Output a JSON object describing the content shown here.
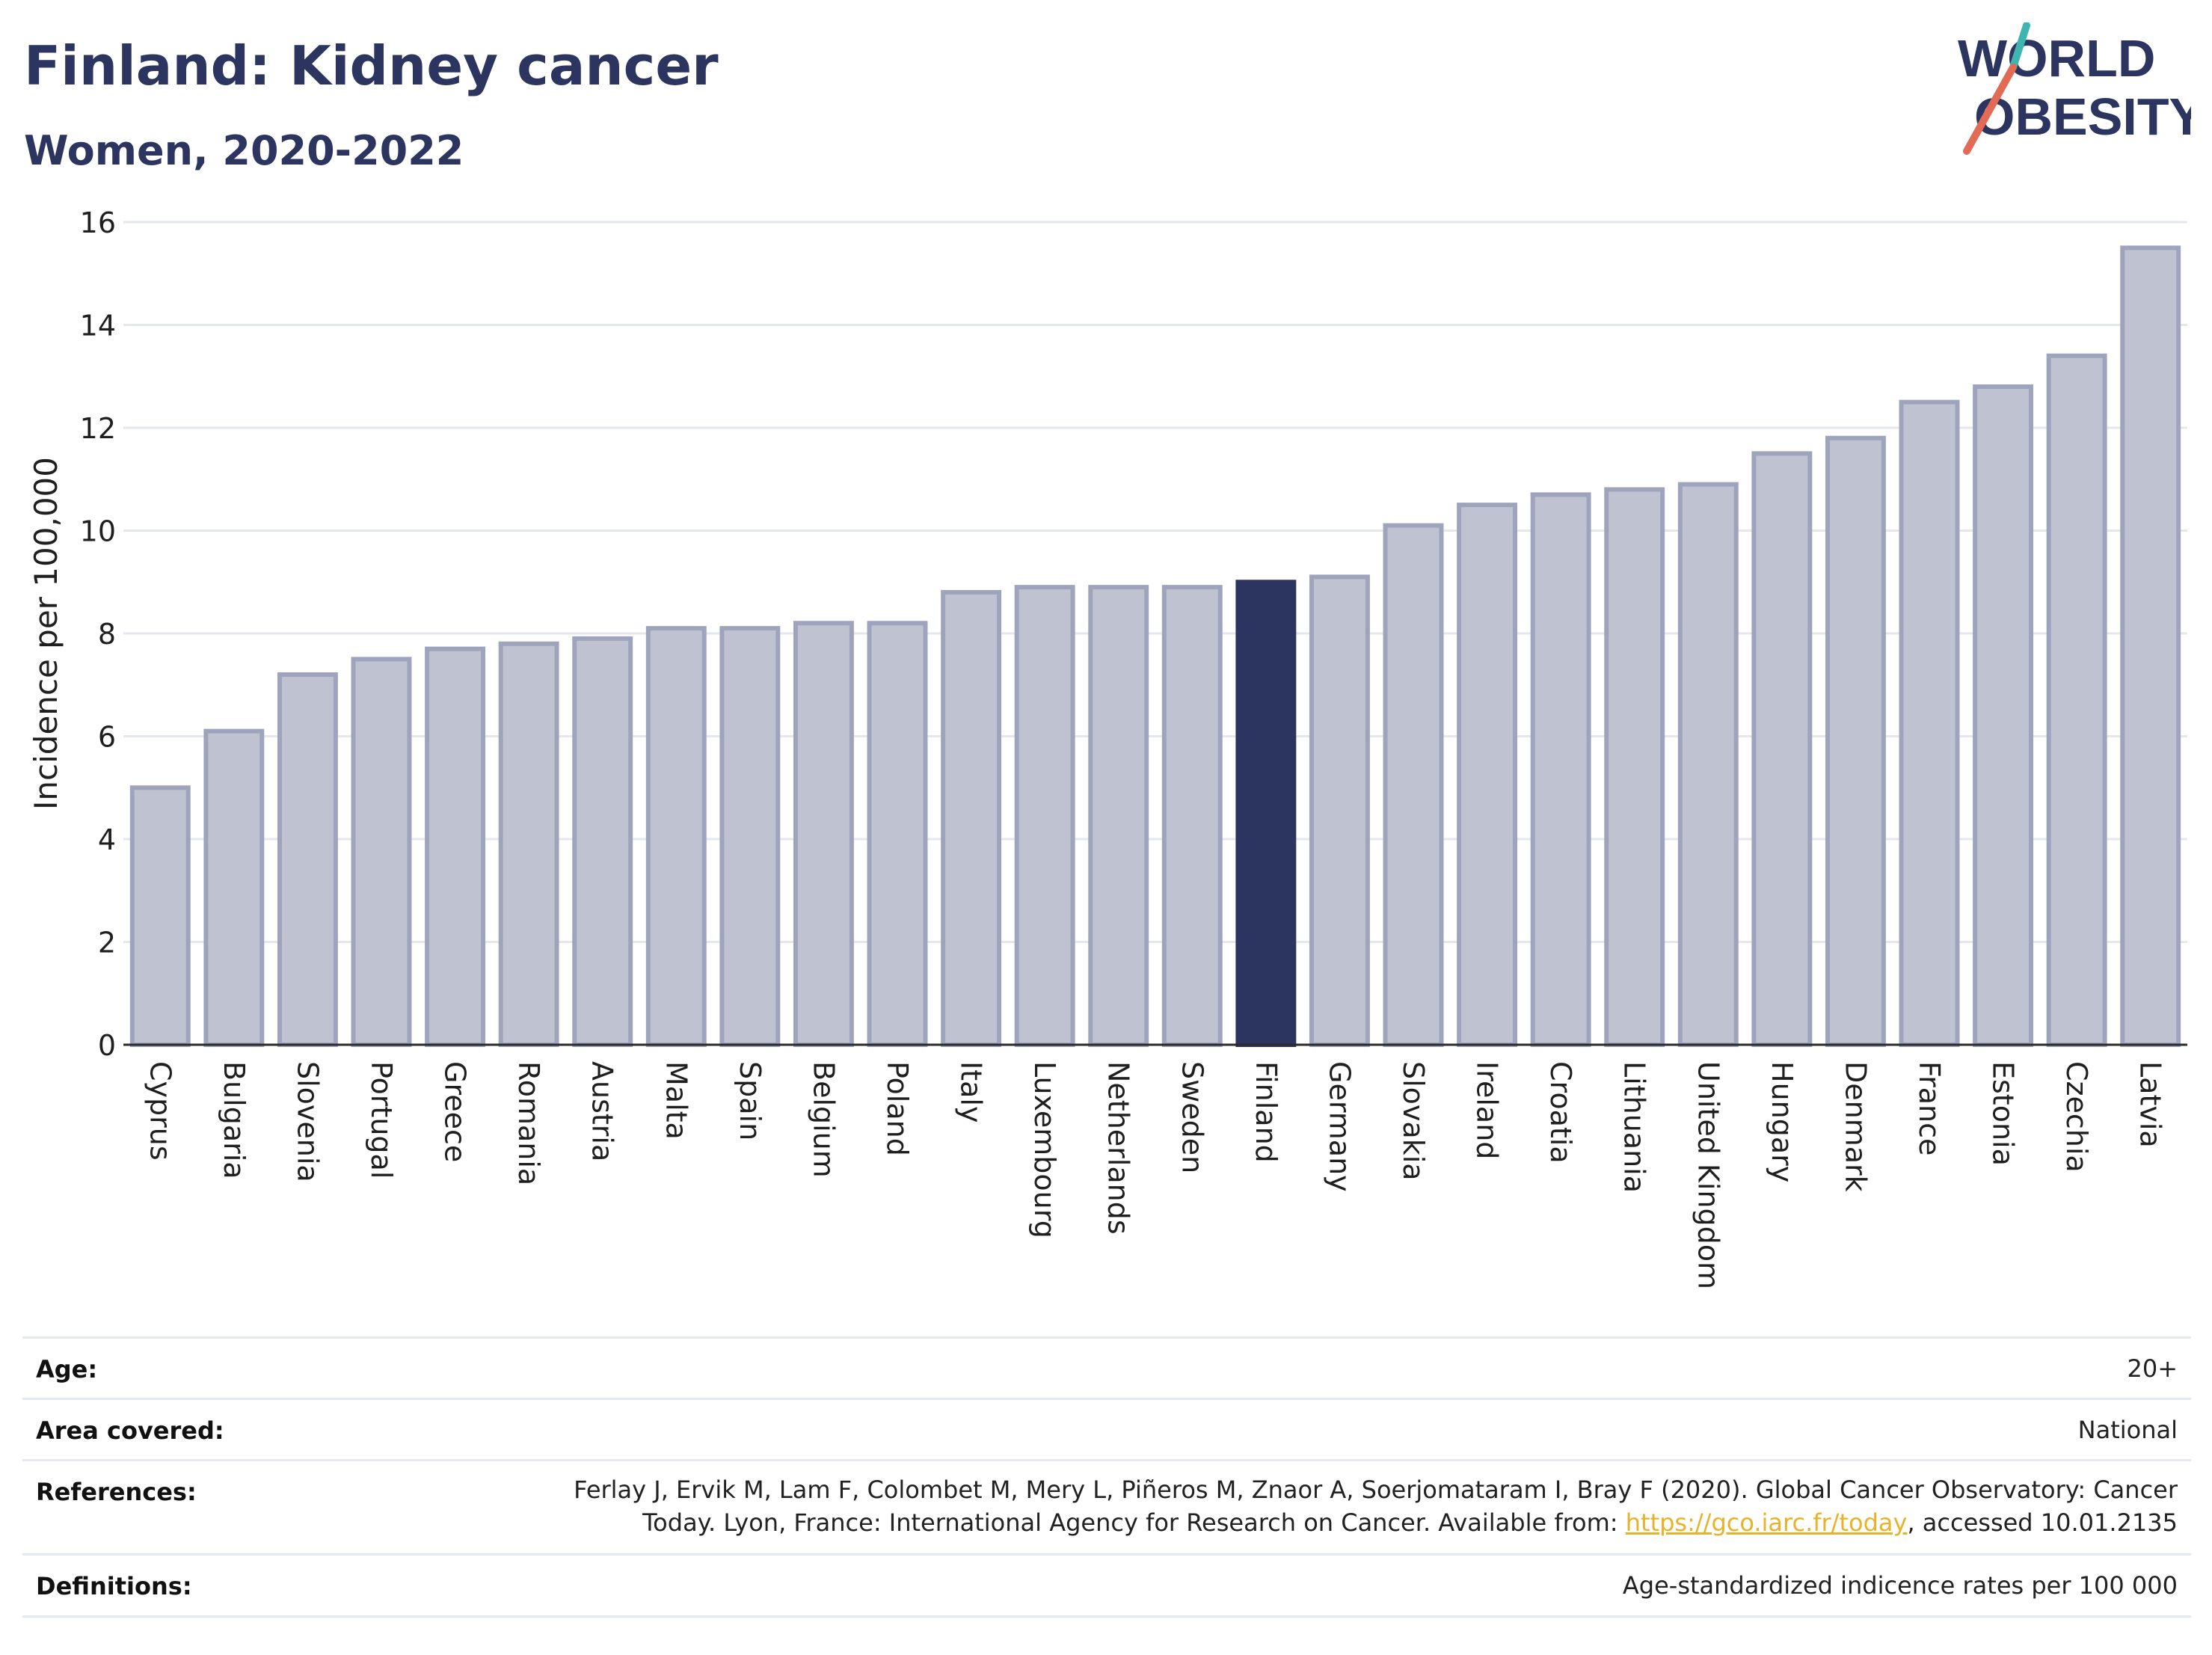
{
  "header": {
    "title": "Finland: Kidney cancer",
    "subtitle": "Women, 2020-2022",
    "logo_line1": "WORLD",
    "logo_line2": "OBESITY"
  },
  "colors": {
    "highlight": "#2b3560",
    "bar": "#bfc3d1",
    "bar_border": "#9ea4bc",
    "title": "#2b3560",
    "link": "#e7b32a",
    "logo_teal": "#3fb5b0",
    "logo_red": "#e36a55"
  },
  "chart_data": {
    "type": "bar",
    "title": "Finland: Kidney cancer",
    "subtitle": "Women, 2020-2022",
    "xlabel": "",
    "ylabel": "Incidence per 100,000",
    "ylim": [
      0,
      16
    ],
    "yticks": [
      0,
      2,
      4,
      6,
      8,
      10,
      12,
      14,
      16
    ],
    "grid": true,
    "highlight": "Finland",
    "categories": [
      "Cyprus",
      "Bulgaria",
      "Slovenia",
      "Portugal",
      "Greece",
      "Romania",
      "Austria",
      "Malta",
      "Spain",
      "Belgium",
      "Poland",
      "Italy",
      "Luxembourg",
      "Netherlands",
      "Sweden",
      "Finland",
      "Germany",
      "Slovakia",
      "Ireland",
      "Croatia",
      "Lithuania",
      "United Kingdom",
      "Hungary",
      "Denmark",
      "France",
      "Estonia",
      "Czechia",
      "Latvia"
    ],
    "values": [
      5.0,
      6.1,
      7.2,
      7.5,
      7.7,
      7.8,
      7.9,
      8.1,
      8.1,
      8.2,
      8.2,
      8.8,
      8.9,
      8.9,
      8.9,
      9.0,
      9.1,
      10.1,
      10.5,
      10.7,
      10.8,
      10.9,
      11.5,
      11.8,
      12.5,
      12.8,
      13.4,
      15.5
    ]
  },
  "meta": {
    "age_label": "Age:",
    "age_value": "20+",
    "area_label": "Area covered:",
    "area_value": "National",
    "references_label": "References:",
    "references_line1": "Ferlay J, Ervik M, Lam F, Colombet M, Mery L, Piñeros M, Znaor A, Soerjomataram I, Bray F (2020). Global Cancer Observatory: Cancer",
    "references_line2_pre": "Today. Lyon, France: International Agency for Research on Cancer. Available from: ",
    "references_link": "https://gco.iarc.fr/today",
    "references_line2_post": ", accessed 10.01.2135",
    "definitions_label": "Definitions:",
    "definitions_value": "Age-standardized indicence rates per 100 000"
  }
}
